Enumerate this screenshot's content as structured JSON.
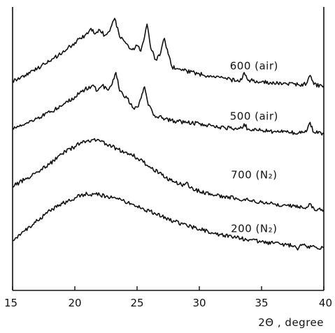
{
  "chart_data": {
    "type": "line",
    "xlabel": "2Θ , degree",
    "ylabel": "",
    "title": "",
    "xlim": [
      15,
      40
    ],
    "ylim": [
      0,
      100
    ],
    "x_ticks": [
      15,
      20,
      25,
      30,
      35,
      40
    ],
    "grid": false,
    "legend": "none",
    "y_axis_ticks_labeled": false,
    "series": [
      {
        "name": "600 (air)",
        "label_anchor": [
          34.4,
          77.6
        ],
        "points": [
          [
            15,
            73.5
          ],
          [
            16,
            75.5
          ],
          [
            17,
            78
          ],
          [
            18,
            80.5
          ],
          [
            19,
            83.5
          ],
          [
            20,
            87
          ],
          [
            20.8,
            89.5
          ],
          [
            21.3,
            92
          ],
          [
            21.6,
            90
          ],
          [
            22.0,
            91.5
          ],
          [
            22.4,
            89.5
          ],
          [
            22.8,
            91
          ],
          [
            23.2,
            95.5
          ],
          [
            23.6,
            89
          ],
          [
            24.2,
            86.5
          ],
          [
            24.6,
            84.5
          ],
          [
            25.0,
            86
          ],
          [
            25.3,
            84
          ],
          [
            25.6,
            89
          ],
          [
            25.8,
            93.5
          ],
          [
            26.1,
            85
          ],
          [
            26.5,
            81
          ],
          [
            26.9,
            83.5
          ],
          [
            27.2,
            88.5
          ],
          [
            27.5,
            83
          ],
          [
            27.8,
            78.5
          ],
          [
            28.5,
            77.5
          ],
          [
            29,
            77
          ],
          [
            30,
            76
          ],
          [
            31,
            75
          ],
          [
            32,
            74.5
          ],
          [
            33,
            73.5
          ],
          [
            33.4,
            74
          ],
          [
            33.6,
            76.5
          ],
          [
            33.9,
            73.8
          ],
          [
            35,
            73.2
          ],
          [
            36,
            72.8
          ],
          [
            37,
            72.5
          ],
          [
            38,
            72.2
          ],
          [
            38.6,
            72.5
          ],
          [
            38.9,
            75.5
          ],
          [
            39.2,
            72.3
          ],
          [
            40,
            71.8
          ]
        ]
      },
      {
        "name": "500 (air)",
        "label_anchor": [
          34.4,
          59.9
        ],
        "points": [
          [
            15,
            57
          ],
          [
            16,
            58.5
          ],
          [
            17,
            60.5
          ],
          [
            18,
            62.5
          ],
          [
            19,
            65
          ],
          [
            20,
            68
          ],
          [
            20.8,
            70.5
          ],
          [
            21.4,
            72
          ],
          [
            21.8,
            70
          ],
          [
            22.2,
            72
          ],
          [
            22.6,
            70.5
          ],
          [
            23.0,
            72.5
          ],
          [
            23.3,
            76.5
          ],
          [
            23.6,
            70
          ],
          [
            24.2,
            67.5
          ],
          [
            24.7,
            64
          ],
          [
            25.1,
            64.5
          ],
          [
            25.4,
            69
          ],
          [
            25.6,
            71.5
          ],
          [
            25.9,
            65
          ],
          [
            26.4,
            61.5
          ],
          [
            27,
            60.5
          ],
          [
            28,
            59.5
          ],
          [
            29,
            59
          ],
          [
            30,
            58.5
          ],
          [
            31,
            57.8
          ],
          [
            32,
            57.2
          ],
          [
            33,
            56.6
          ],
          [
            33.4,
            57
          ],
          [
            33.6,
            58.5
          ],
          [
            33.9,
            56.6
          ],
          [
            35,
            56.2
          ],
          [
            36,
            55.8
          ],
          [
            37,
            55.6
          ],
          [
            38,
            55.3
          ],
          [
            38.6,
            55.7
          ],
          [
            38.9,
            59
          ],
          [
            39.2,
            55.5
          ],
          [
            40,
            55
          ]
        ]
      },
      {
        "name": "700 (N₂)",
        "label_anchor": [
          34.4,
          39.3
        ],
        "points": [
          [
            15,
            36.5
          ],
          [
            16,
            39
          ],
          [
            17,
            41.5
          ],
          [
            18,
            44.5
          ],
          [
            19,
            48
          ],
          [
            20,
            50.5
          ],
          [
            20.5,
            52
          ],
          [
            21,
            52.5
          ],
          [
            21.5,
            53
          ],
          [
            22,
            52.5
          ],
          [
            22.5,
            51.5
          ],
          [
            23,
            50.5
          ],
          [
            23.5,
            49.5
          ],
          [
            24,
            48.5
          ],
          [
            24.5,
            48
          ],
          [
            25,
            46.5
          ],
          [
            25.5,
            45
          ],
          [
            26,
            43.5
          ],
          [
            27,
            40.5
          ],
          [
            28,
            38
          ],
          [
            28.8,
            37
          ],
          [
            29,
            38
          ],
          [
            29.3,
            36
          ],
          [
            30,
            34.8
          ],
          [
            31,
            33.8
          ],
          [
            32,
            33
          ],
          [
            33,
            32.3
          ],
          [
            34,
            31.6
          ],
          [
            35,
            30.9
          ],
          [
            36,
            30.3
          ],
          [
            37,
            29.8
          ],
          [
            38,
            29.4
          ],
          [
            38.6,
            29.2
          ],
          [
            38.9,
            30.5
          ],
          [
            39.2,
            28.8
          ],
          [
            40,
            28.2
          ]
        ]
      },
      {
        "name": "200 (N₂)",
        "label_anchor": [
          34.4,
          20.5
        ],
        "points": [
          [
            15,
            17.5
          ],
          [
            16,
            21
          ],
          [
            17,
            24.5
          ],
          [
            18,
            28
          ],
          [
            19,
            30.5
          ],
          [
            20,
            32.5
          ],
          [
            20.5,
            33.5
          ],
          [
            21,
            33.8
          ],
          [
            21.5,
            33.8
          ],
          [
            22,
            33.5
          ],
          [
            22.5,
            33
          ],
          [
            23,
            32.5
          ],
          [
            23.5,
            32
          ],
          [
            24,
            31.2
          ],
          [
            24.5,
            30.5
          ],
          [
            25,
            29.5
          ],
          [
            26,
            27.8
          ],
          [
            27,
            26
          ],
          [
            28,
            24.3
          ],
          [
            29,
            22.8
          ],
          [
            30,
            21.5
          ],
          [
            31,
            20.3
          ],
          [
            32,
            19.3
          ],
          [
            33,
            18.5
          ],
          [
            34,
            17.8
          ],
          [
            35,
            17.1
          ],
          [
            36,
            16.5
          ],
          [
            37,
            16
          ],
          [
            37.6,
            15.6
          ],
          [
            37.9,
            14.2
          ],
          [
            38.2,
            15.8
          ],
          [
            39,
            15.4
          ],
          [
            39.5,
            14.6
          ],
          [
            40,
            15.2
          ]
        ]
      }
    ]
  }
}
